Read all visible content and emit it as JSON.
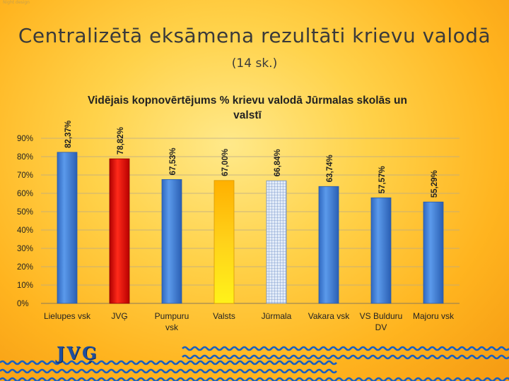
{
  "slide": {
    "title": "Centralizētā eksāmena rezultāti  krievu valodā",
    "subtitle": "(14 sk.)",
    "logo_text": "JVĢ",
    "corner_mark": "Night design"
  },
  "colors": {
    "blue_bar": "#3f7fd6",
    "red_bar": "#e01010",
    "yellow_bar": "#ffd21a",
    "hatched_bar": "#c9d8ee",
    "wave": "#1a5fbf"
  },
  "chart_data": {
    "type": "bar",
    "title": "Vidējais kopnovērtējums % krievu valodā Jūrmalas skolās un valstī",
    "title_lines": [
      "Vidējais kopnovērtējums % krievu valodā Jūrmalas skolās un",
      "valstī"
    ],
    "categories": [
      {
        "lines": [
          "Lielupes vsk"
        ]
      },
      {
        "lines": [
          "JVĢ"
        ]
      },
      {
        "lines": [
          "Pumpuru",
          "vsk"
        ]
      },
      {
        "lines": [
          "Valsts"
        ]
      },
      {
        "lines": [
          "Jūrmala"
        ]
      },
      {
        "lines": [
          "Vakara vsk"
        ]
      },
      {
        "lines": [
          "VS Bulduru",
          "DV"
        ]
      },
      {
        "lines": [
          "Majoru vsk"
        ]
      }
    ],
    "values": [
      82.37,
      78.82,
      67.53,
      67.0,
      66.84,
      63.74,
      57.57,
      55.29
    ],
    "data_labels": [
      "82,37%",
      "78,82%",
      "67,53%",
      "67,00%",
      "66,84%",
      "63,74%",
      "57,57%",
      "55,29%"
    ],
    "bar_styles": [
      "blue",
      "red",
      "blue",
      "yellow",
      "hatched",
      "blue",
      "blue",
      "blue"
    ],
    "ylim": [
      0,
      90
    ],
    "yticks": [
      0,
      10,
      20,
      30,
      40,
      50,
      60,
      70,
      80,
      90
    ],
    "ytick_labels": [
      "0%",
      "10%",
      "20%",
      "30%",
      "40%",
      "50%",
      "60%",
      "70%",
      "80%",
      "90%"
    ],
    "grid": true,
    "xlabel": "",
    "ylabel": ""
  }
}
